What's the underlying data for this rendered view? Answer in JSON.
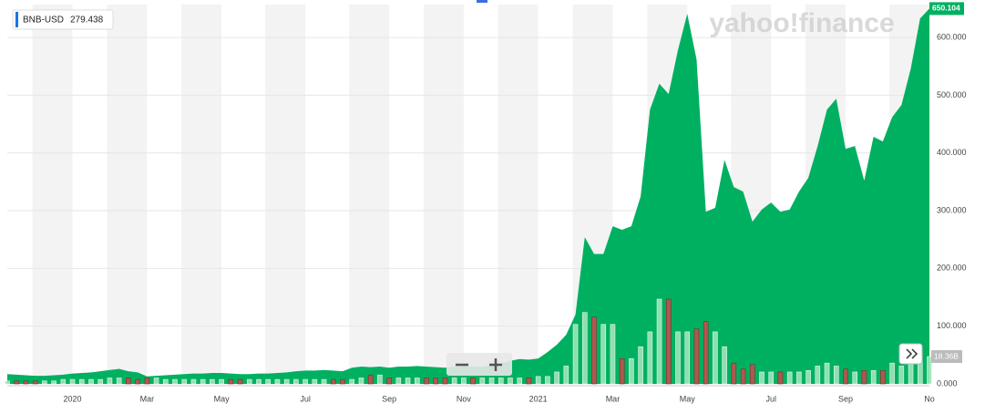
{
  "chart_data": {
    "type": "area",
    "legend": {
      "symbol": "BNB-USD",
      "value": "279.438"
    },
    "watermark": "yahoo!finance",
    "last_price_label": "650.104",
    "categories": [
      null,
      null,
      null,
      null,
      null,
      null,
      null,
      "2020",
      null,
      null,
      null,
      null,
      null,
      null,
      null,
      "Mar",
      null,
      null,
      null,
      null,
      null,
      null,
      null,
      "May",
      null,
      null,
      null,
      null,
      null,
      null,
      null,
      null,
      "Jul",
      null,
      null,
      null,
      null,
      null,
      null,
      null,
      null,
      "Sep",
      null,
      null,
      null,
      null,
      null,
      null,
      null,
      "Nov",
      null,
      null,
      null,
      null,
      null,
      null,
      null,
      "2021",
      null,
      null,
      null,
      null,
      null,
      null,
      null,
      "Mar",
      null,
      null,
      null,
      null,
      null,
      null,
      null,
      "May",
      null,
      null,
      null,
      null,
      null,
      null,
      null,
      null,
      "Jul",
      null,
      null,
      null,
      null,
      null,
      null,
      null,
      "Sep",
      null,
      null,
      null,
      null,
      null,
      null,
      null,
      null,
      "No"
    ],
    "series": [
      {
        "name": "BNB-USD",
        "color": "#00b061",
        "values": [
          17,
          16,
          15,
          14,
          14,
          15,
          16,
          18,
          19,
          20,
          22,
          24,
          26,
          22,
          20,
          13,
          14,
          15,
          16,
          17,
          18,
          18,
          19,
          19,
          18,
          17,
          17,
          18,
          18,
          19,
          20,
          22,
          23,
          23,
          24,
          23,
          22,
          28,
          30,
          29,
          30,
          28,
          30,
          30,
          31,
          30,
          29,
          28,
          30,
          32,
          30,
          30,
          32,
          35,
          40,
          43,
          42,
          44,
          55,
          68,
          85,
          120,
          254,
          225,
          225,
          273,
          267,
          273,
          325,
          475,
          520,
          502,
          578,
          641,
          562,
          298,
          305,
          388,
          341,
          333,
          281,
          302,
          314,
          298,
          302,
          333,
          357,
          412,
          475,
          494,
          407,
          412,
          352,
          428,
          420,
          462,
          483,
          546,
          633,
          650
        ]
      },
      {
        "name": "Volume",
        "axis": "y2",
        "up_color": "#9ee6b8",
        "down_color": "#c0504d",
        "values": [
          2,
          2,
          2,
          2,
          2,
          2,
          3,
          3,
          3,
          3,
          3,
          4,
          4,
          4,
          3,
          4,
          4,
          3,
          3,
          3,
          3,
          3,
          3,
          3,
          3,
          3,
          3,
          3,
          3,
          3,
          3,
          3,
          3,
          3,
          3,
          3,
          3,
          3,
          4,
          6,
          6,
          4,
          4,
          4,
          4,
          4,
          4,
          4,
          4,
          4,
          4,
          4,
          4,
          4,
          4,
          4,
          4,
          5,
          5,
          8,
          12,
          40,
          48,
          45,
          40,
          40,
          17,
          17,
          25,
          35,
          57,
          57,
          35,
          35,
          37,
          42,
          35,
          25,
          14,
          10,
          13,
          8,
          8,
          8,
          8,
          8,
          9,
          12,
          14,
          12,
          10,
          8,
          9,
          9,
          9,
          14,
          12,
          16,
          22,
          18.36
        ],
        "last_label": "18.36B"
      }
    ],
    "ylim": [
      0,
      657
    ],
    "yticks": [
      {
        "value": 0,
        "label": "0.000"
      },
      {
        "value": 100,
        "label": "100.000"
      },
      {
        "value": 200,
        "label": "200.000"
      },
      {
        "value": 300,
        "label": "300.000"
      },
      {
        "value": 400,
        "label": "400.000"
      },
      {
        "value": 500,
        "label": "500.000"
      },
      {
        "value": 600,
        "label": "600.000"
      }
    ],
    "y2lim": [
      0,
      255
    ],
    "grid": true
  }
}
